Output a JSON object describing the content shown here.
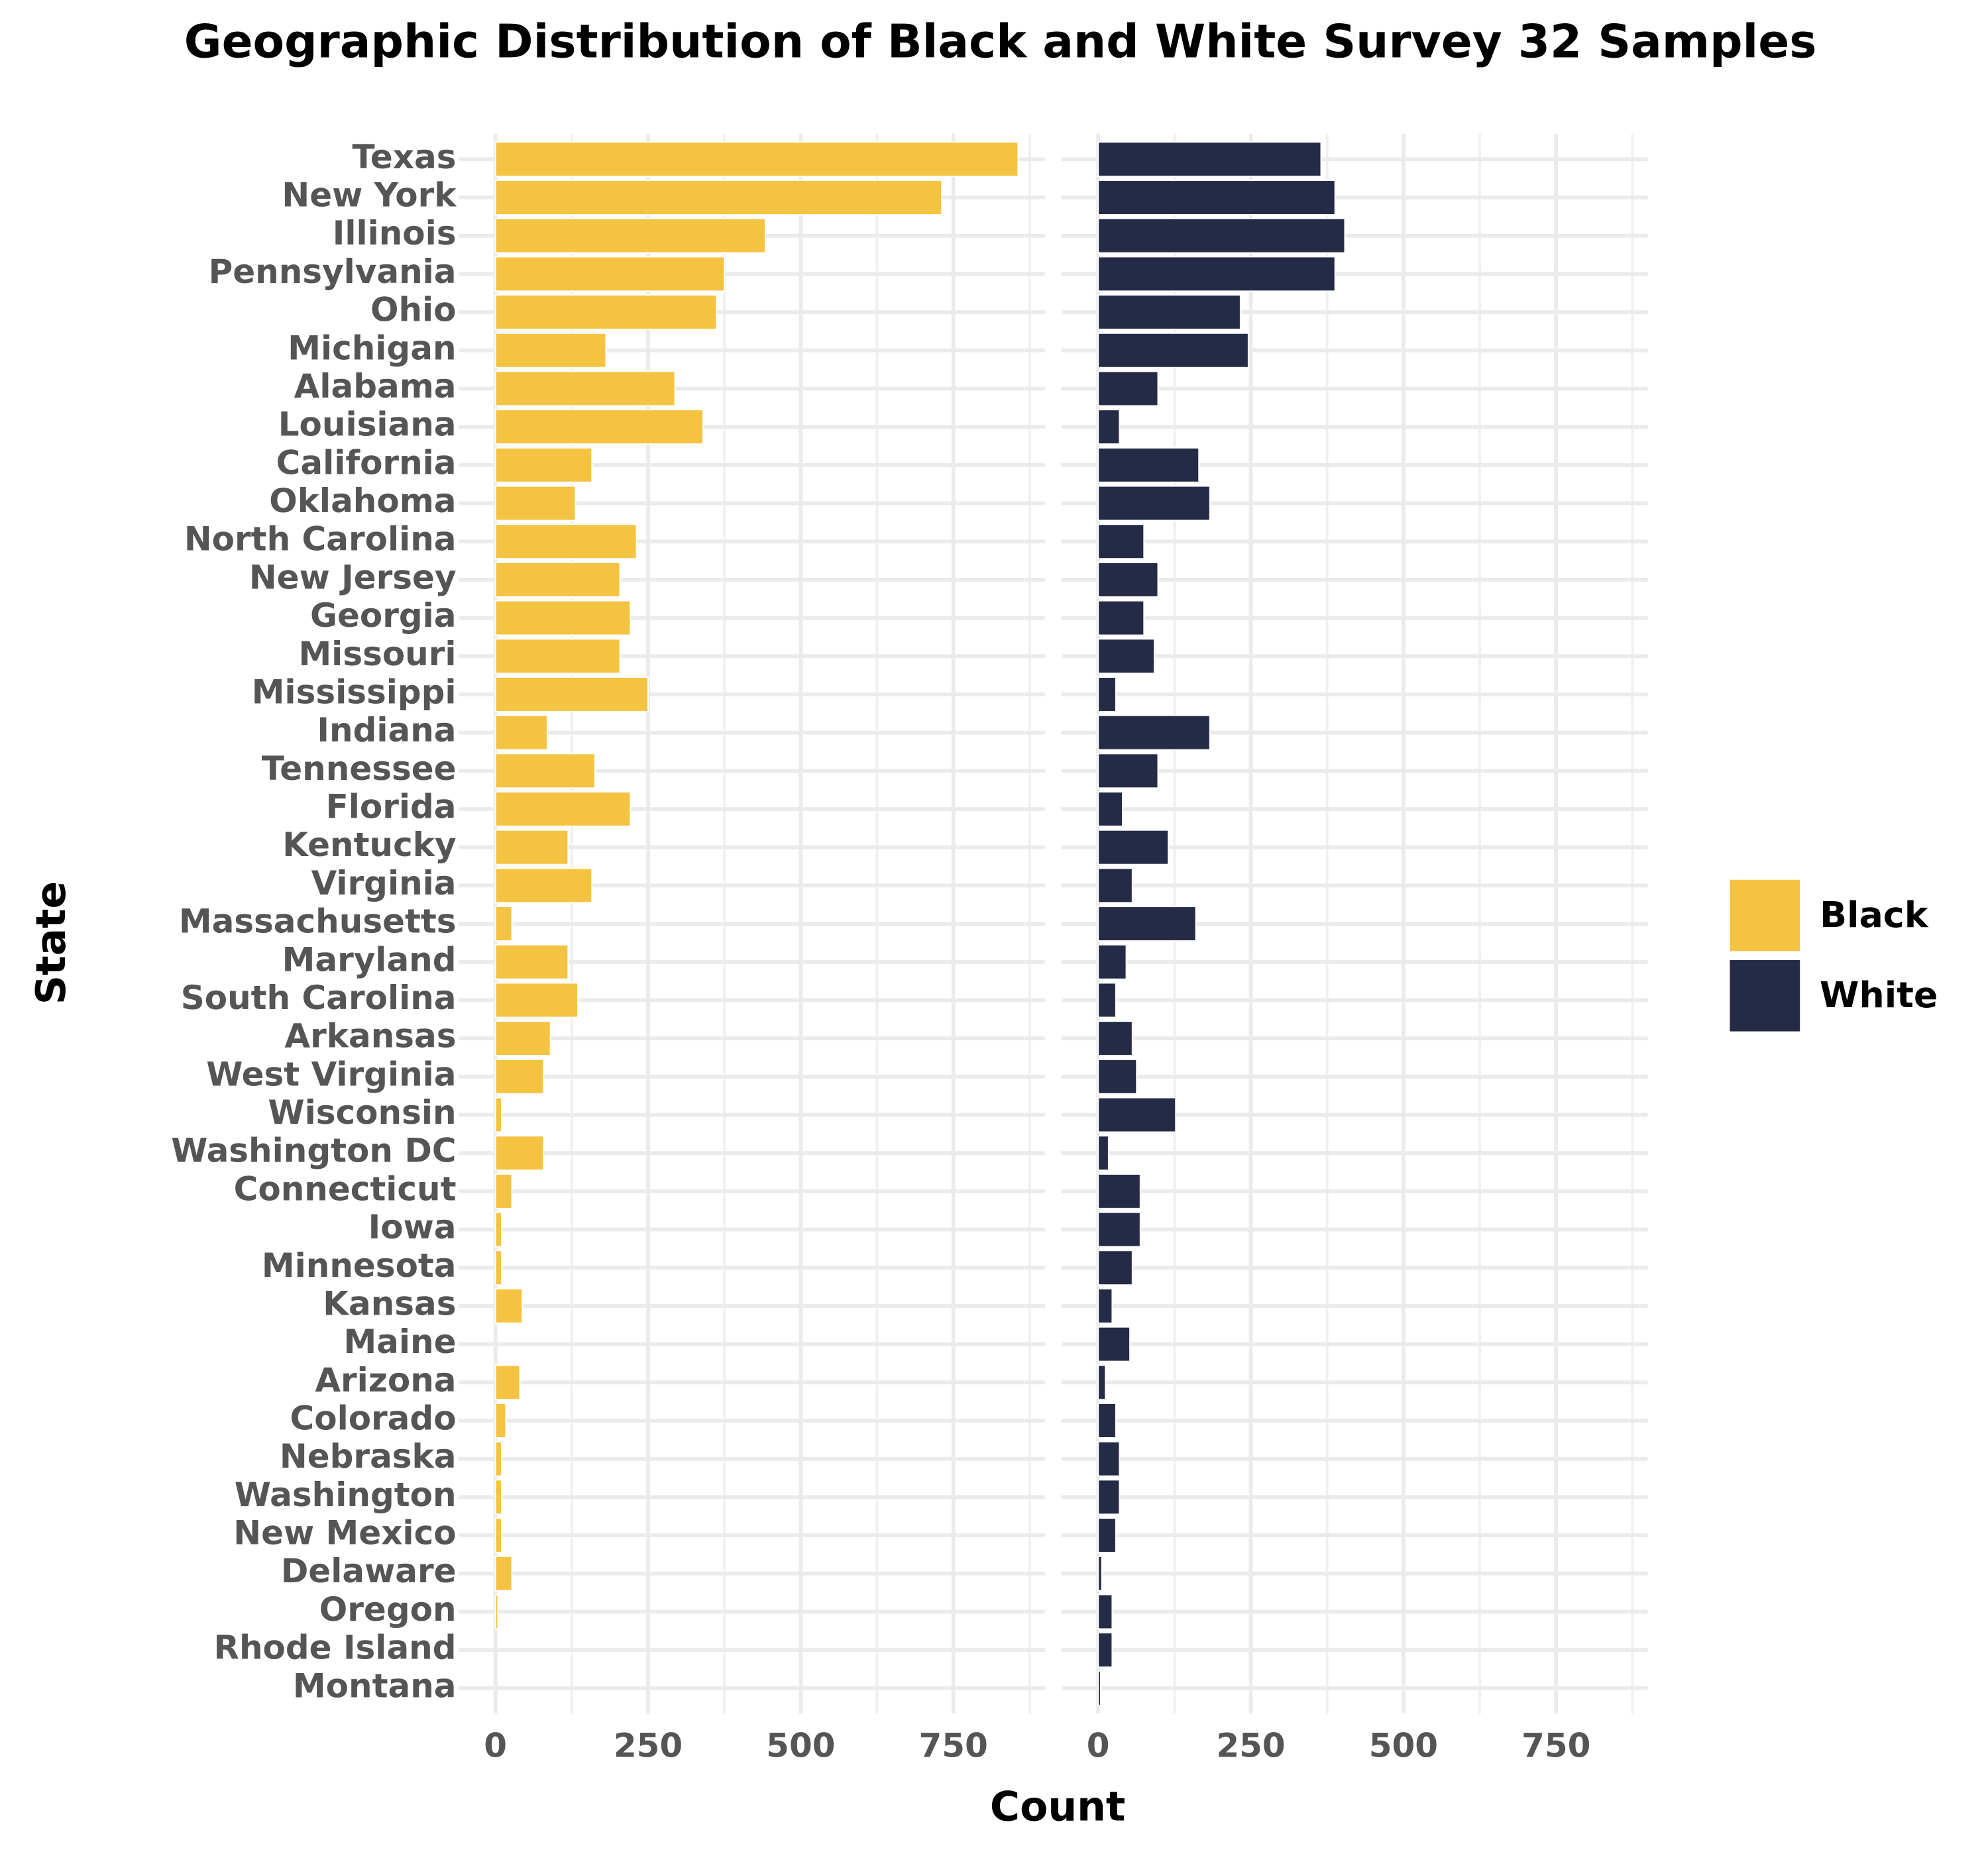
{
  "chart_data": {
    "type": "bar",
    "orientation": "horizontal",
    "facet_by_series": true,
    "title": "Geographic Distribution of Black and White Survey 32 Samples",
    "xlabel": "Count",
    "ylabel": "State",
    "categories": [
      "Texas",
      "New York",
      "Illinois",
      "Pennsylvania",
      "Ohio",
      "Michigan",
      "Alabama",
      "Louisiana",
      "California",
      "Oklahoma",
      "North Carolina",
      "New Jersey",
      "Georgia",
      "Missouri",
      "Mississippi",
      "Indiana",
      "Tennessee",
      "Florida",
      "Kentucky",
      "Virginia",
      "Massachusetts",
      "Maryland",
      "South Carolina",
      "Arkansas",
      "West Virginia",
      "Wisconsin",
      "Washington DC",
      "Connecticut",
      "Iowa",
      "Minnesota",
      "Kansas",
      "Maine",
      "Arizona",
      "Colorado",
      "Nebraska",
      "Washington",
      "New Mexico",
      "Delaware",
      "Oregon",
      "Rhode Island",
      "Montana"
    ],
    "series": [
      {
        "name": "Black",
        "color": "#F5C342",
        "values": [
          856,
          731,
          442,
          375,
          362,
          181,
          294,
          340,
          158,
          131,
          231,
          204,
          221,
          204,
          250,
          85,
          163,
          221,
          119,
          158,
          27,
          119,
          135,
          90,
          79,
          10,
          79,
          27,
          10,
          10,
          44,
          0,
          40,
          17,
          10,
          10,
          10,
          27,
          4,
          0,
          0
        ]
      },
      {
        "name": "White",
        "color": "#252B47",
        "values": [
          365,
          388,
          404,
          388,
          233,
          246,
          98,
          35,
          165,
          183,
          75,
          98,
          75,
          92,
          29,
          183,
          98,
          40,
          115,
          56,
          160,
          46,
          29,
          56,
          63,
          127,
          17,
          69,
          69,
          56,
          23,
          52,
          12,
          29,
          35,
          35,
          29,
          6,
          23,
          23,
          4
        ]
      }
    ],
    "xlim": [
      -60,
      900
    ],
    "xticks": [
      0,
      250,
      500,
      750
    ],
    "x_minor_grid": [
      125,
      375,
      625,
      875
    ],
    "grid": true,
    "legend_position": "right"
  }
}
